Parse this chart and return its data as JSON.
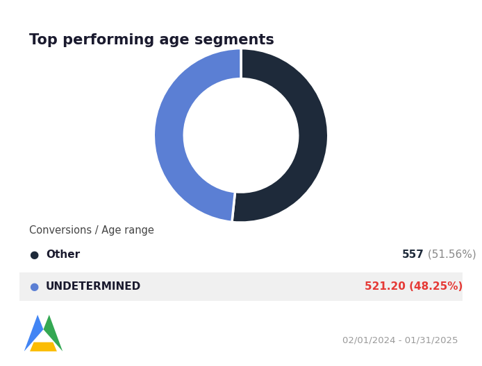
{
  "title": "Top performing age segments",
  "subtitle": "Conversions / Age range",
  "segments": [
    "Other",
    "UNDETERMINED"
  ],
  "values": [
    51.56,
    48.25
  ],
  "colors": [
    "#1e2a3a",
    "#5b7fd4"
  ],
  "legend_labels": [
    "Other",
    "UNDETERMINED"
  ],
  "legend_value_main": [
    "557",
    "521.20"
  ],
  "legend_value_pct": [
    " (51.56%)",
    " (48.25%)"
  ],
  "legend_value_main_colors": [
    "#1e2a3a",
    "#e53935"
  ],
  "legend_value_pct_colors": [
    "#888888",
    "#e53935"
  ],
  "legend_bg_colors": [
    "#ffffff",
    "#f0f0f0"
  ],
  "date_range": "02/01/2024 - 01/31/2025",
  "background_color": "#ffffff",
  "title_fontsize": 15,
  "subtitle_fontsize": 10.5,
  "legend_label_fontsize": 11,
  "legend_value_fontsize": 11,
  "date_fontsize": 9.5
}
